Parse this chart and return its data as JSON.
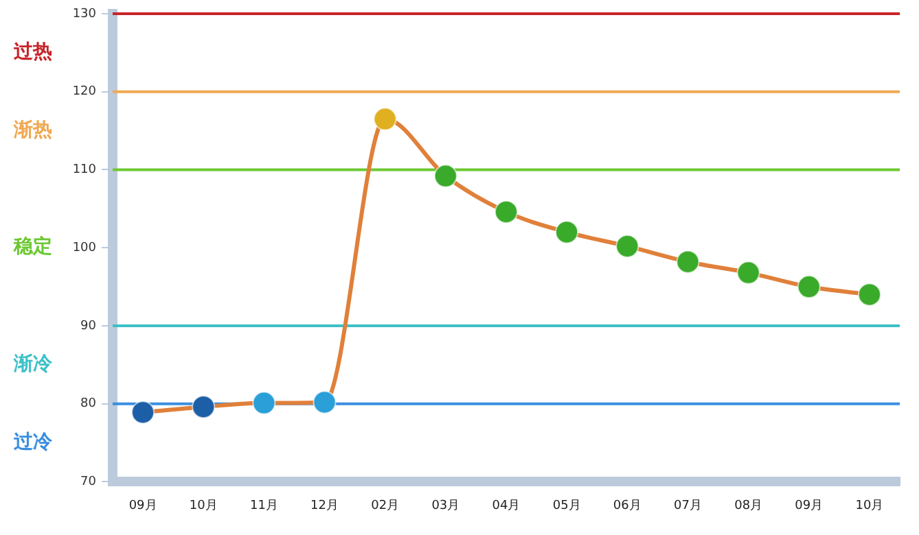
{
  "chart_data": {
    "type": "line",
    "categories": [
      "09月",
      "10月",
      "11月",
      "12月",
      "02月",
      "03月",
      "04月",
      "05月",
      "06月",
      "07月",
      "08月",
      "09月",
      "10月"
    ],
    "series": [
      {
        "color": "#e0803a",
        "values": [
          78.9,
          79.6,
          80.1,
          80.2,
          116.5,
          109.2,
          104.6,
          102.0,
          100.2,
          98.2,
          96.8,
          95.0,
          94.0
        ],
        "colors": [
          "#1d5fa6",
          "#1d5fa6",
          "#2a9fd8",
          "#2a9fd8",
          "#e0b020",
          "#3aaa2a",
          "#3aaa2a",
          "#3aaa2a",
          "#3aaa2a",
          "#3aaa2a",
          "#3aaa2a",
          "#3aaa2a",
          "#3aaa2a"
        ]
      }
    ],
    "ylim": [
      70,
      130
    ],
    "yticks": [
      70,
      80,
      90,
      100,
      110,
      120,
      130
    ],
    "ref_lines": [
      {
        "axis": "y",
        "value": 130,
        "color": "#c8242a"
      },
      {
        "axis": "y",
        "value": 120,
        "color": "#f0a850"
      },
      {
        "axis": "y",
        "value": 110,
        "color": "#6cc832"
      },
      {
        "axis": "y",
        "value": 90,
        "color": "#3cc0c8"
      },
      {
        "axis": "y",
        "value": 80,
        "color": "#3a8ee0"
      }
    ],
    "annotations": [
      "过热",
      "渐热",
      "稳定",
      "渐冷",
      "过冷"
    ],
    "grid": false,
    "legend": false,
    "marker": "circle"
  }
}
